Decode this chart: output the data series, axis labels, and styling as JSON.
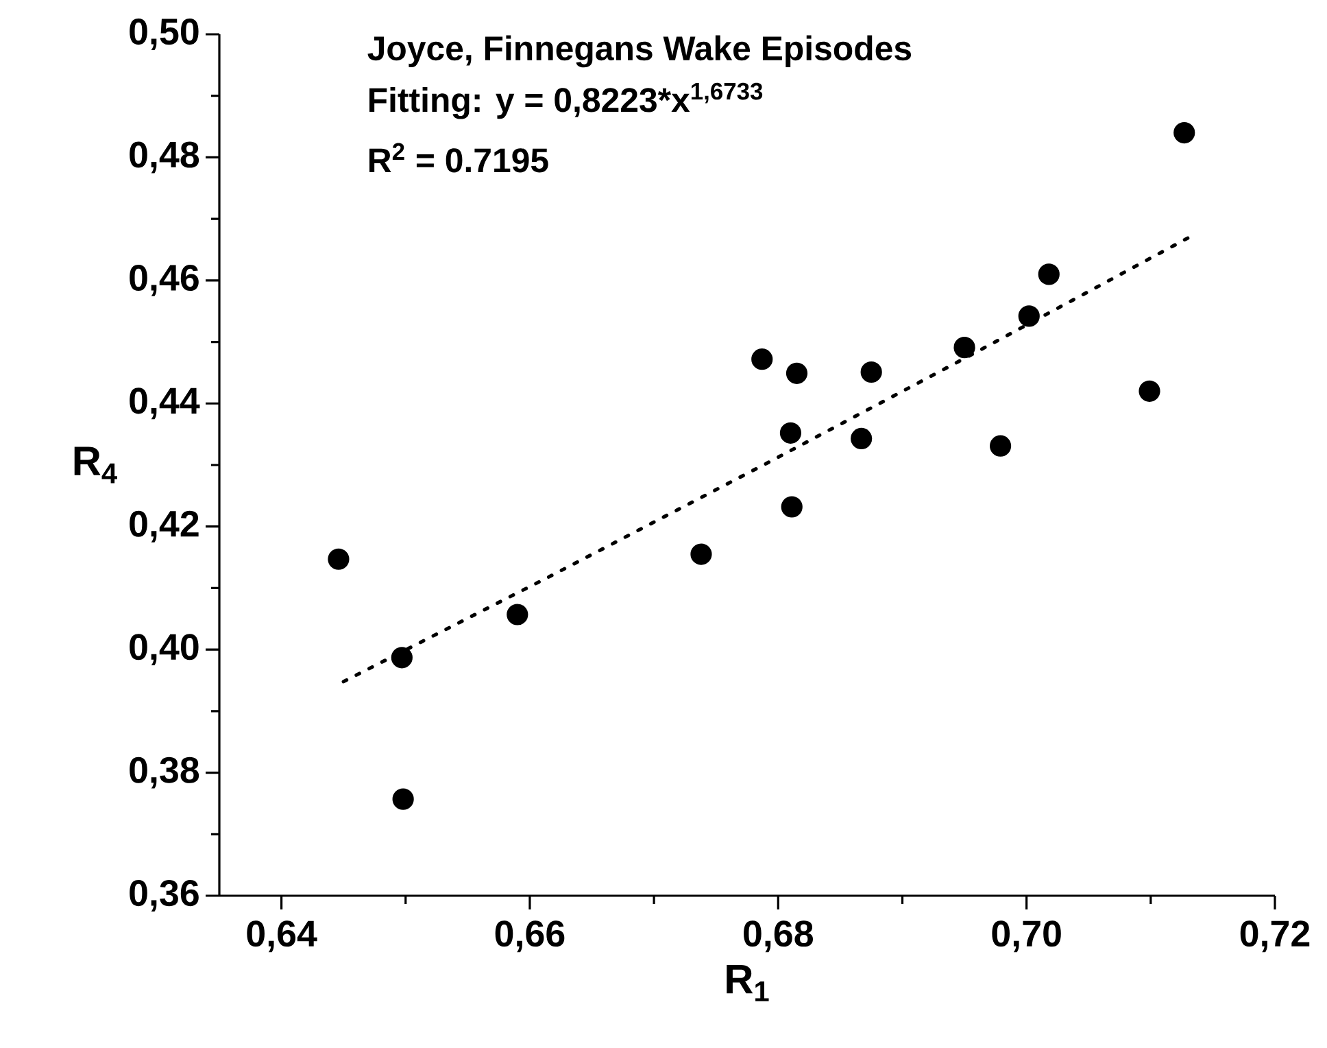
{
  "chart_data": {
    "type": "scatter",
    "title": "Joyce, Finnegans Wake Episodes",
    "annotations": [
      "Fitting: y = 0,8223*x$^{1,6733}$",
      "R$^{2}$ = 0.7195"
    ],
    "xlabel": "R$_{1}$",
    "ylabel": "R$_{4}$",
    "xlim": [
      0.635,
      0.72
    ],
    "ylim": [
      0.36,
      0.5
    ],
    "xticks": [
      {
        "value": 0.64,
        "label": "0,64"
      },
      {
        "value": 0.65,
        "label": null
      },
      {
        "value": 0.66,
        "label": "0,66"
      },
      {
        "value": 0.67,
        "label": null
      },
      {
        "value": 0.68,
        "label": "0,68"
      },
      {
        "value": 0.69,
        "label": null
      },
      {
        "value": 0.7,
        "label": "0,70"
      },
      {
        "value": 0.71,
        "label": null
      },
      {
        "value": 0.72,
        "label": "0,72"
      }
    ],
    "yticks": [
      {
        "value": 0.36,
        "label": "0,36"
      },
      {
        "value": 0.37,
        "label": null
      },
      {
        "value": 0.38,
        "label": "0,38"
      },
      {
        "value": 0.39,
        "label": null
      },
      {
        "value": 0.4,
        "label": "0,40"
      },
      {
        "value": 0.41,
        "label": null
      },
      {
        "value": 0.42,
        "label": "0,42"
      },
      {
        "value": 0.43,
        "label": null
      },
      {
        "value": 0.44,
        "label": "0,44"
      },
      {
        "value": 0.45,
        "label": null
      },
      {
        "value": 0.46,
        "label": "0,46"
      },
      {
        "value": 0.47,
        "label": null
      },
      {
        "value": 0.48,
        "label": "0,48"
      },
      {
        "value": 0.49,
        "label": null
      },
      {
        "value": 0.5,
        "label": "0,50"
      }
    ],
    "series": [
      {
        "color": "#000000",
        "marker": "circle",
        "x": [
          0.7127,
          0.7018,
          0.7002,
          0.695,
          0.6787,
          0.6815,
          0.6875,
          0.681,
          0.6867,
          0.6979,
          0.7099,
          0.6811,
          0.6446,
          0.6497,
          0.6498,
          0.659,
          0.6738
        ],
        "values": [
          0.484,
          0.461,
          0.4542,
          0.4491,
          0.4472,
          0.4449,
          0.4451,
          0.4352,
          0.4343,
          0.4331,
          0.442,
          0.4232,
          0.4147,
          0.3987,
          0.3757,
          0.4057,
          0.4155
        ]
      },
      {
        "type": "line",
        "color": "#000000",
        "marker": "none",
        "line_style": "dotted",
        "x": [
          0.645,
          0.662,
          0.679,
          0.696,
          0.713
        ],
        "values": [
          0.3948,
          0.4123,
          0.4302,
          0.4484,
          0.4669
        ]
      }
    ]
  }
}
